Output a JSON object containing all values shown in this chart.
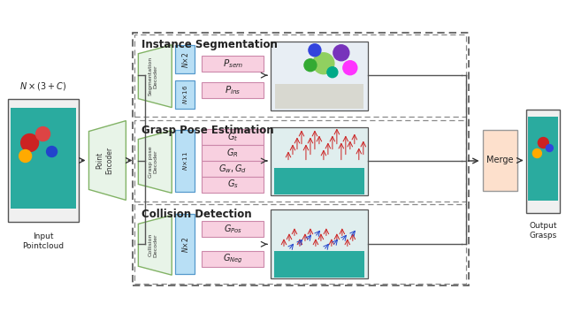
{
  "bg_color": "#ffffff",
  "dec_color": "#e8f4e8",
  "nx_color": "#b8dff5",
  "out_color": "#f8d0e0",
  "merge_color": "#fde0cc",
  "seg_title": "Instance Segmentation",
  "gpe_title": "Grasp Pose Estimation",
  "col_title": "Collision Detection",
  "seg_nx_top": "N×2",
  "seg_nx_bot": "N×16",
  "gpe_nx": "N×11",
  "col_nx": "N×2",
  "seg_out1": "$P_{sem}$",
  "seg_out2": "$P_{ins}$",
  "gpe_out1": "$G_t$",
  "gpe_out2": "$G_R$",
  "gpe_out3": "$G_w, G_d$",
  "gpe_out4": "$G_s$",
  "col_out1": "$G_{Pos}$",
  "col_out2": "$G_{Neg}$",
  "enc_label": "Point\nEncoder",
  "seg_dec_label": "Segmentation\nDecoder",
  "gpe_dec_label": "Grasp pose\nDecoder",
  "col_dec_label": "Collision\nDecoder",
  "merge_label": "Merge",
  "input_label": "Input\nPointcloud",
  "nx3c_label": "$N\\times(3+C)$",
  "output_label": "Output\nGrasps"
}
